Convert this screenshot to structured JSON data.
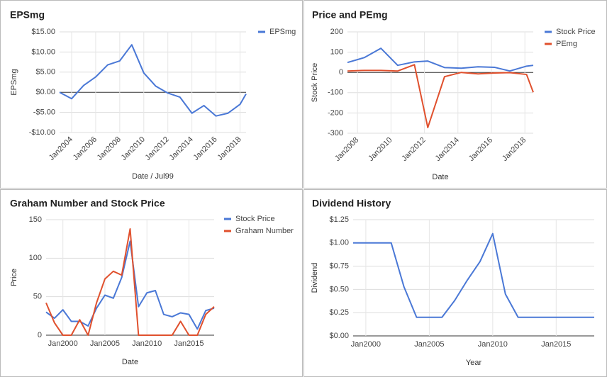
{
  "chart_data": [
    {
      "type": "line",
      "title": "EPSmg",
      "x_label": "Date / Jul99",
      "y_label": "EPSmg",
      "grid": true,
      "legend": "right",
      "x": [
        2003,
        2004,
        2005,
        2006,
        2007,
        2008,
        2009,
        2010,
        2011,
        2012,
        2013,
        2014,
        2015,
        2016,
        2017,
        2018,
        2018.5
      ],
      "series": [
        {
          "name": "EPSmg",
          "color": "#4a78d6",
          "values": [
            0,
            -1.6,
            1.7,
            3.8,
            6.8,
            7.8,
            11.8,
            4.8,
            1.5,
            -0.2,
            -1.2,
            -5.2,
            -3.3,
            -5.9,
            -5.2,
            -3,
            -0.4
          ]
        }
      ],
      "xlim": [
        2003,
        2018.5
      ],
      "xticks": [
        {
          "value": 2004,
          "label": "Jan2004"
        },
        {
          "value": 2006,
          "label": "Jan2006"
        },
        {
          "value": 2008,
          "label": "Jan2008"
        },
        {
          "value": 2010,
          "label": "Jan2010"
        },
        {
          "value": 2012,
          "label": "Jan2012"
        },
        {
          "value": 2014,
          "label": "Jan2014"
        },
        {
          "value": 2016,
          "label": "Jan2016"
        },
        {
          "value": 2018,
          "label": "Jan2018"
        }
      ],
      "ylim": [
        -10,
        15
      ],
      "yticks": [
        {
          "value": -10,
          "label": "-$10.00"
        },
        {
          "value": -5,
          "label": "-$5.00"
        },
        {
          "value": 0,
          "label": "$0.00"
        },
        {
          "value": 5,
          "label": "$5.00"
        },
        {
          "value": 10,
          "label": "$10.00"
        },
        {
          "value": 15,
          "label": "$15.00"
        }
      ]
    },
    {
      "type": "line",
      "title": "Price and PEmg",
      "x_label": "Date",
      "y_label": "Stock Price",
      "grid": true,
      "legend": "right",
      "x": [
        2007.4,
        2008.4,
        2009.4,
        2010.4,
        2011.4,
        2012.2,
        2013.2,
        2014.2,
        2015.2,
        2016.2,
        2017.1,
        2018.1,
        2018.5
      ],
      "series": [
        {
          "name": "Stock Price",
          "color": "#4a78d6",
          "values": [
            49,
            73,
            119,
            35,
            52,
            56,
            24,
            21,
            28,
            25,
            7,
            31,
            35
          ]
        },
        {
          "name": "PEmg",
          "color": "#e0502d",
          "values": [
            7,
            10,
            10,
            7,
            38,
            -272,
            -21,
            0,
            -7,
            -3,
            -1,
            -10,
            -98
          ]
        }
      ],
      "xlim": [
        2007.4,
        2018.5
      ],
      "xticks": [
        {
          "value": 2008,
          "label": "Jan2008"
        },
        {
          "value": 2010,
          "label": "Jan2010"
        },
        {
          "value": 2012,
          "label": "Jan2012"
        },
        {
          "value": 2014,
          "label": "Jan2014"
        },
        {
          "value": 2016,
          "label": "Jan2016"
        },
        {
          "value": 2018,
          "label": "Jan2018"
        }
      ],
      "ylim": [
        -300,
        200
      ],
      "yticks": [
        -300,
        -200,
        -100,
        0,
        100,
        200
      ]
    },
    {
      "type": "line",
      "title": "Graham Number and Stock Price",
      "x_label": "Date",
      "y_label": "Price",
      "grid": true,
      "legend": "right",
      "x": [
        1998,
        1999,
        2000,
        2001,
        2002,
        2003,
        2004,
        2005,
        2006,
        2007,
        2008,
        2009,
        2010,
        2011,
        2012,
        2013,
        2014,
        2015,
        2016,
        2017,
        2018
      ],
      "series": [
        {
          "name": "Stock Price",
          "color": "#4a78d6",
          "values": [
            30,
            22,
            33,
            18,
            18,
            12,
            35,
            52,
            48,
            75,
            122,
            37,
            55,
            58,
            27,
            24,
            29,
            27,
            8,
            32,
            35
          ]
        },
        {
          "name": "Graham Number",
          "color": "#e0502d",
          "values": [
            42,
            16,
            0,
            0,
            20,
            0,
            42,
            73,
            83,
            78,
            138,
            0,
            0,
            0,
            0,
            0,
            18,
            0,
            0,
            27,
            37
          ]
        }
      ],
      "xlim": [
        1998,
        2018
      ],
      "xticks": [
        {
          "value": 2000,
          "label": "Jan2000"
        },
        {
          "value": 2005,
          "label": "Jan2005"
        },
        {
          "value": 2010,
          "label": "Jan2010"
        },
        {
          "value": 2015,
          "label": "Jan2015"
        }
      ],
      "ylim": [
        0,
        150
      ],
      "yticks": [
        0,
        50,
        100,
        150
      ]
    },
    {
      "type": "line",
      "title": "Dividend History",
      "x_label": "Year",
      "y_label": "Dividend",
      "grid": true,
      "x": [
        1999,
        2000,
        2001,
        2002,
        2003,
        2004,
        2005,
        2006,
        2007,
        2008,
        2009,
        2010,
        2011,
        2012,
        2013,
        2014,
        2015,
        2016,
        2017,
        2018
      ],
      "series": [
        {
          "color": "#4a78d6",
          "values": [
            1.0,
            1.0,
            1.0,
            1.0,
            0.53,
            0.2,
            0.2,
            0.2,
            0.38,
            0.6,
            0.8,
            1.1,
            0.45,
            0.2,
            0.2,
            0.2,
            0.2,
            0.2,
            0.2,
            0.2
          ]
        }
      ],
      "xlim": [
        1999,
        2018
      ],
      "xticks": [
        {
          "value": 2000,
          "label": "Jan2000"
        },
        {
          "value": 2005,
          "label": "Jan2005"
        },
        {
          "value": 2010,
          "label": "Jan2010"
        },
        {
          "value": 2015,
          "label": "Jan2015"
        }
      ],
      "ylim": [
        0,
        1.25
      ],
      "yticks": [
        {
          "value": 0,
          "label": "$0.00"
        },
        {
          "value": 0.25,
          "label": "$0.25"
        },
        {
          "value": 0.5,
          "label": "$0.50"
        },
        {
          "value": 0.75,
          "label": "$0.75"
        },
        {
          "value": 1,
          "label": "$1.00"
        },
        {
          "value": 1.25,
          "label": "$1.25"
        }
      ]
    }
  ]
}
